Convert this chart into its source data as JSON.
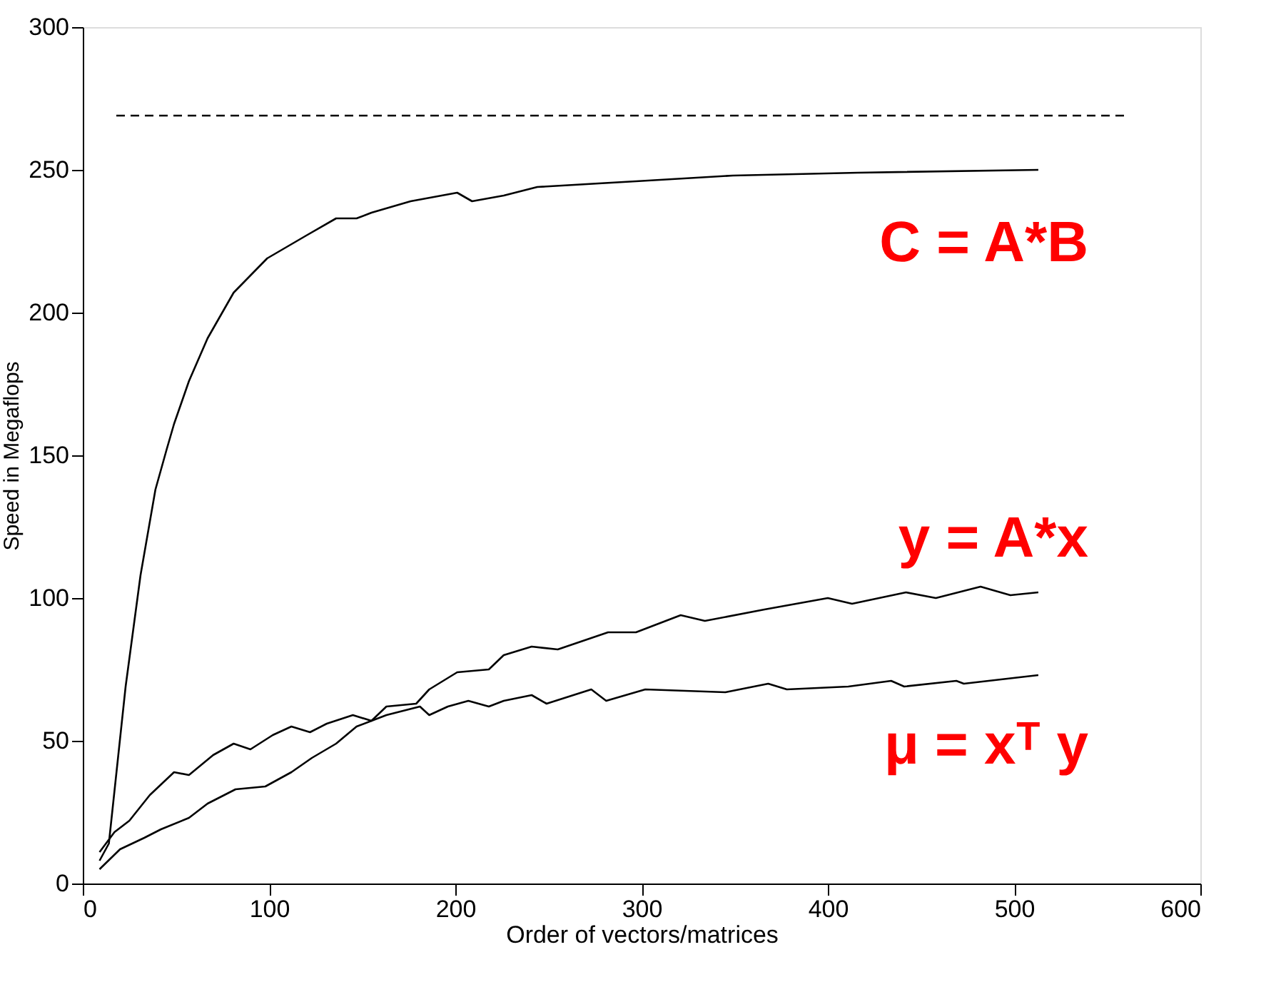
{
  "chart_data": {
    "type": "line",
    "xlabel": "Order of vectors/matrices",
    "ylabel": "Speed in Megaflops",
    "xlim": [
      0,
      600
    ],
    "ylim": [
      0,
      300
    ],
    "xticks": [
      0,
      100,
      200,
      300,
      400,
      500,
      600
    ],
    "yticks": [
      0,
      50,
      100,
      150,
      200,
      250,
      300
    ],
    "grid": false,
    "series": [
      {
        "name": "C = A*B",
        "color": "#000000",
        "x": [
          9,
          14,
          23,
          31,
          39,
          45,
          49,
          57,
          67,
          81,
          99,
          120,
          136,
          147,
          155,
          176,
          201,
          209,
          226,
          244,
          297,
          349,
          416,
          513
        ],
        "values": [
          8,
          14,
          69,
          108,
          138,
          152,
          161,
          176,
          191,
          207,
          219,
          227,
          233,
          233,
          235,
          239,
          242,
          239,
          241,
          244,
          246,
          248,
          249,
          250
        ]
      },
      {
        "name": "y = A*x",
        "color": "#000000",
        "x": [
          9,
          17,
          25,
          36,
          49,
          57,
          70,
          81,
          90,
          102,
          112,
          122,
          131,
          145,
          155,
          163,
          179,
          186,
          201,
          218,
          226,
          241,
          255,
          282,
          297,
          321,
          334,
          366,
          400,
          413,
          442,
          458,
          482,
          498,
          513
        ],
        "values": [
          11,
          18,
          22,
          31,
          39,
          38,
          45,
          49,
          47,
          52,
          55,
          53,
          56,
          59,
          57,
          62,
          63,
          68,
          74,
          75,
          80,
          83,
          82,
          88,
          88,
          94,
          92,
          96,
          100,
          98,
          102,
          100,
          104,
          101,
          102
        ]
      },
      {
        "name": "μ = xᵀ y",
        "color": "#000000",
        "x": [
          9,
          20,
          33,
          42,
          57,
          67,
          82,
          98,
          112,
          123,
          136,
          147,
          163,
          181,
          186,
          196,
          207,
          218,
          226,
          241,
          249,
          273,
          281,
          302,
          345,
          368,
          378,
          411,
          434,
          441,
          469,
          473,
          513
        ],
        "values": [
          5,
          12,
          16,
          19,
          23,
          28,
          33,
          34,
          39,
          44,
          49,
          55,
          59,
          62,
          59,
          62,
          64,
          62,
          64,
          66,
          63,
          68,
          64,
          68,
          67,
          70,
          68,
          69,
          71,
          69,
          71,
          70,
          73
        ]
      },
      {
        "type": "line",
        "line_style": "dashed",
        "color": "#000000",
        "x": [
          18,
          559
        ],
        "values": [
          269,
          269
        ]
      }
    ]
  }
}
